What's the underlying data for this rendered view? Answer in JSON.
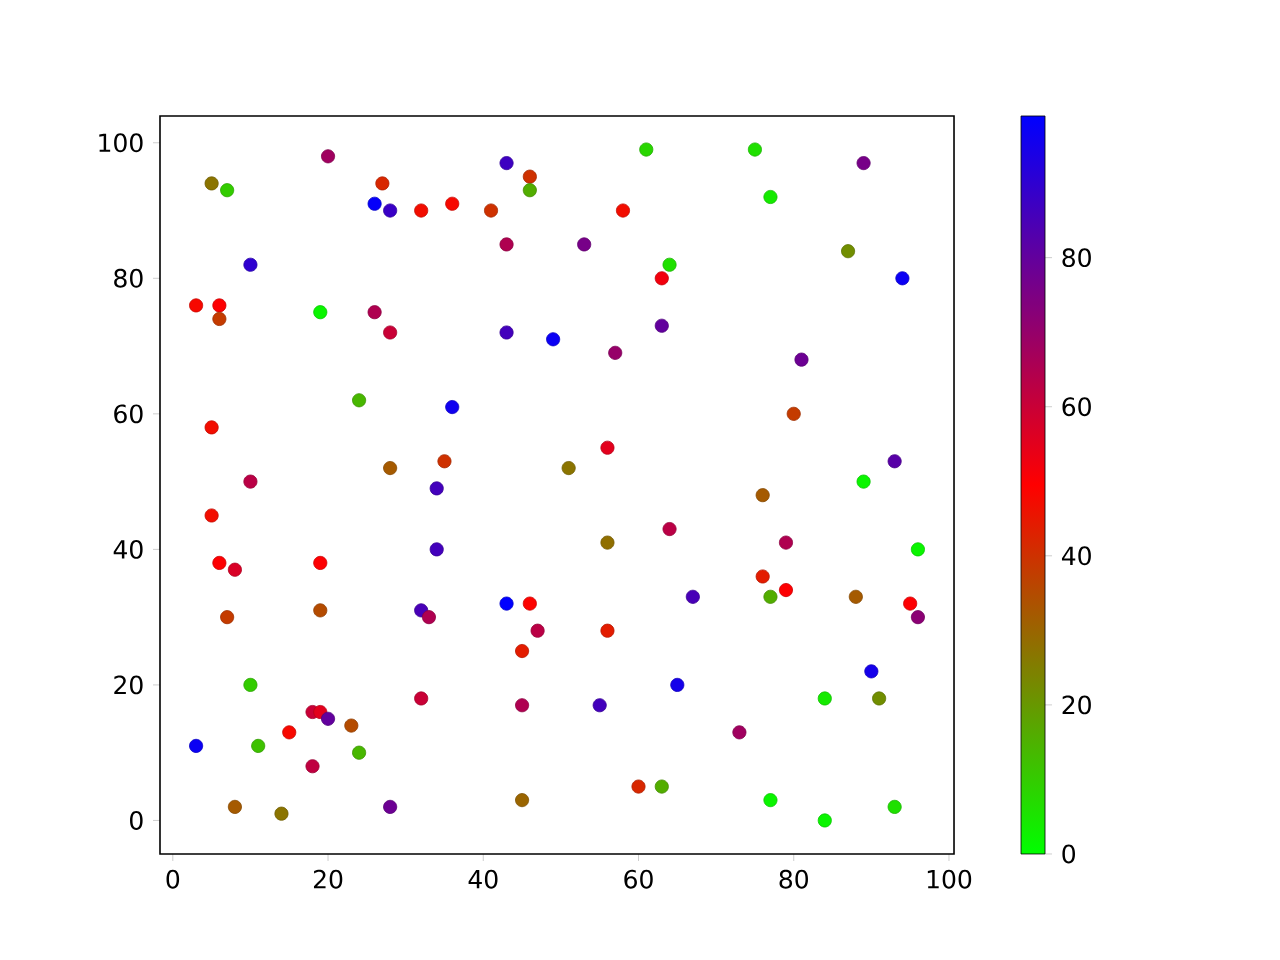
{
  "chart_data": {
    "type": "scatter",
    "marker": "circle",
    "xlim": [
      -1.65,
      100.65
    ],
    "ylim": [
      -4.95,
      103.95
    ],
    "xticks": [
      0,
      20,
      40,
      60,
      80,
      100
    ],
    "yticks": [
      0,
      20,
      40,
      60,
      80,
      100
    ],
    "clim": [
      0,
      99
    ],
    "cticks": [
      0,
      20,
      40,
      60,
      80
    ],
    "x": [
      3,
      3,
      5,
      5,
      5,
      6,
      6,
      6,
      7,
      7,
      8,
      8,
      10,
      10,
      10,
      11,
      14,
      15,
      18,
      18,
      19,
      19,
      19,
      19,
      20,
      20,
      23,
      24,
      24,
      26,
      26,
      27,
      28,
      28,
      28,
      28,
      32,
      32,
      32,
      33,
      34,
      34,
      35,
      36,
      36,
      41,
      43,
      43,
      43,
      43,
      45,
      45,
      45,
      46,
      46,
      46,
      47,
      49,
      51,
      53,
      55,
      56,
      56,
      56,
      57,
      58,
      60,
      61,
      63,
      63,
      63,
      64,
      64,
      65,
      67,
      73,
      75,
      76,
      76,
      77,
      77,
      77,
      79,
      79,
      80,
      81,
      84,
      84,
      87,
      88,
      89,
      89,
      90,
      91,
      93,
      93,
      94,
      95,
      96,
      96
    ],
    "values": [
      11,
      76,
      94,
      58,
      45,
      76,
      74,
      38,
      93,
      30,
      37,
      2,
      82,
      50,
      20,
      11,
      1,
      13,
      16,
      8,
      75,
      38,
      31,
      16,
      98,
      15,
      14,
      62,
      10,
      91,
      75,
      94,
      90,
      72,
      52,
      2,
      90,
      31,
      18,
      30,
      49,
      40,
      53,
      91,
      61,
      90,
      97,
      85,
      72,
      32,
      25,
      17,
      3,
      95,
      93,
      32,
      28,
      71,
      52,
      85,
      17,
      55,
      41,
      28,
      69,
      90,
      5,
      99,
      80,
      73,
      5,
      82,
      43,
      20,
      33,
      13,
      99,
      48,
      36,
      92,
      33,
      3,
      41,
      34,
      60,
      68,
      18,
      0,
      84,
      33,
      97,
      50,
      22,
      18,
      53,
      2,
      80,
      32,
      30,
      40
    ],
    "cvalues": [
      97,
      48,
      27,
      47,
      47,
      50,
      38,
      50,
      10,
      38,
      57,
      32,
      90,
      63,
      10,
      12,
      27,
      48,
      60,
      62,
      2,
      50,
      35,
      55,
      68,
      80,
      35,
      14,
      14,
      98,
      65,
      42,
      88,
      60,
      32,
      78,
      47,
      85,
      60,
      65,
      86,
      86,
      40,
      48,
      96,
      40,
      87,
      65,
      86,
      99,
      44,
      65,
      30,
      40,
      16,
      49,
      63,
      97,
      27,
      76,
      86,
      55,
      28,
      44,
      70,
      47,
      42,
      8,
      52,
      80,
      16,
      6,
      63,
      95,
      85,
      68,
      6,
      32,
      44,
      4,
      16,
      2,
      65,
      50,
      38,
      78,
      4,
      2,
      22,
      32,
      76,
      2,
      95,
      22,
      82,
      6,
      97,
      50,
      72,
      2
    ]
  }
}
